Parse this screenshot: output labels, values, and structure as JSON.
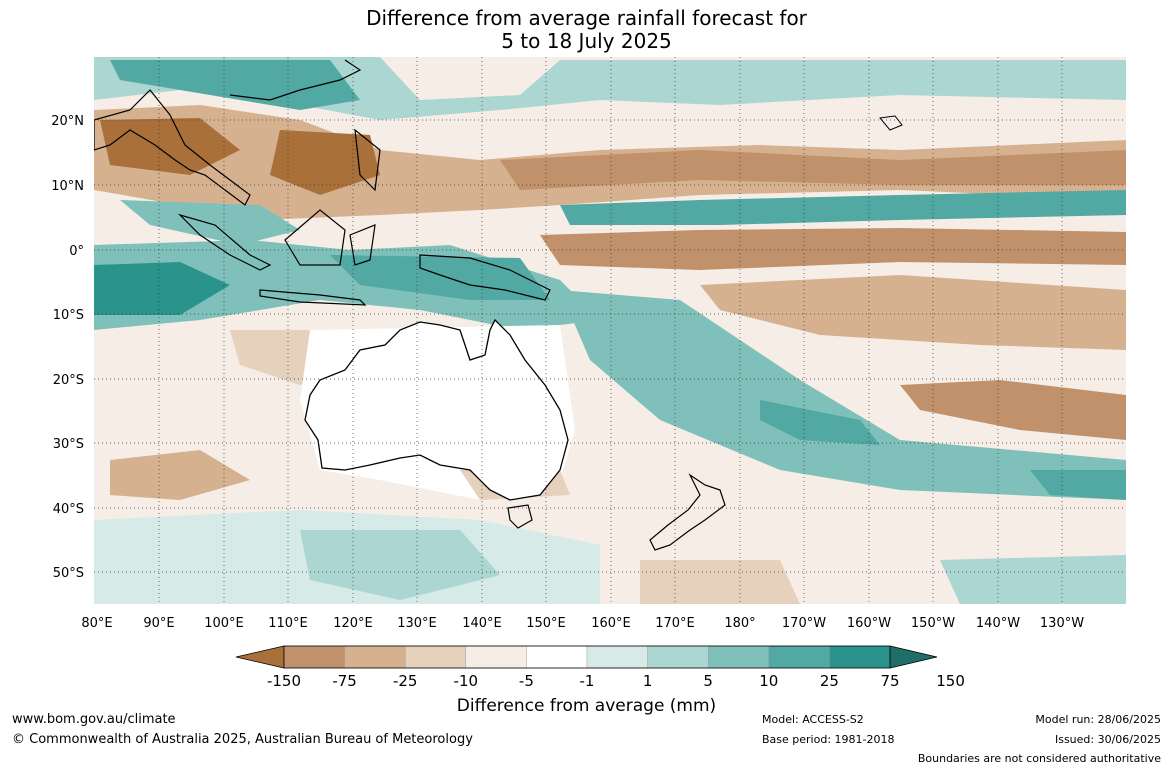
{
  "title": {
    "line1": "Difference from average rainfall forecast for",
    "line2": "5 to 18 July 2025"
  },
  "map": {
    "lat_labels": [
      "20°N",
      "10°N",
      "0°",
      "10°S",
      "20°S",
      "30°S",
      "40°S",
      "50°S"
    ],
    "lon_labels": [
      "80°E",
      "90°E",
      "100°E",
      "110°E",
      "120°E",
      "130°E",
      "140°E",
      "150°E",
      "160°E",
      "170°E",
      "180°",
      "170°W",
      "160°W",
      "150°W",
      "140°W",
      "130°W"
    ]
  },
  "colorbar": {
    "title": "Difference from average (mm)",
    "tick_labels": [
      "-150",
      "-75",
      "-25",
      "-10",
      "-5",
      "-1",
      "1",
      "5",
      "10",
      "25",
      "75",
      "150"
    ],
    "colors": [
      "#a9703a",
      "#c0916a",
      "#d6b190",
      "#e6d1bd",
      "#f5ede6",
      "#ffffff",
      "#d6eae7",
      "#acd6d2",
      "#80c0bb",
      "#52a8a3",
      "#2a938c",
      "#1f6e6a"
    ]
  },
  "footer": {
    "url": "www.bom.gov.au/climate",
    "copyright": "© Commonwealth of Australia 2025, Australian Bureau of Meteorology",
    "model": "Model: ACCESS-S2",
    "base_period": "Base period: 1981-2018",
    "model_run": "Model run: 28/06/2025",
    "issued": "Issued: 30/06/2025",
    "disclaimer": "Boundaries are not considered authoritative"
  }
}
